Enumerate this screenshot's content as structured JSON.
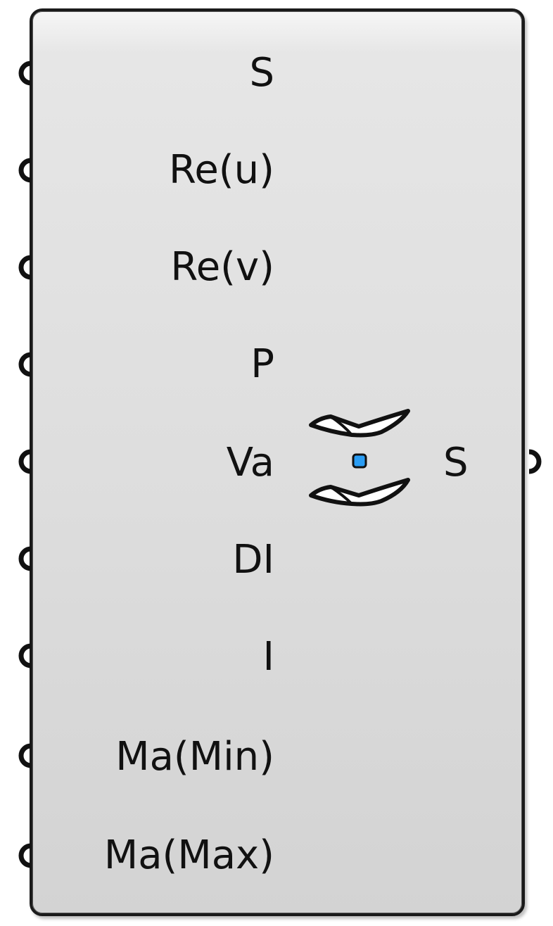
{
  "component": {
    "inputs": [
      {
        "label": "S"
      },
      {
        "label": "Re(u)"
      },
      {
        "label": "Re(v)"
      },
      {
        "label": "P"
      },
      {
        "label": "Va"
      },
      {
        "label": "DI"
      },
      {
        "label": "I"
      },
      {
        "label": "Ma(Min)"
      },
      {
        "label": "Ma(Max)"
      }
    ],
    "output": {
      "label": "S"
    },
    "icon": "surface-rebuild-icon",
    "accent_color": "#2a9df4"
  }
}
